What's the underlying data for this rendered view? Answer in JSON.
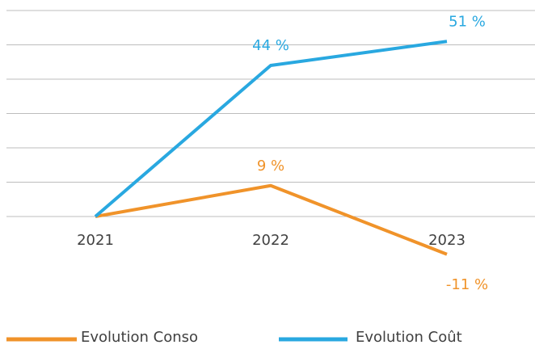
{
  "chart_data": {
    "type": "line",
    "categories": [
      "2021",
      "2022",
      "2023"
    ],
    "series": [
      {
        "name": "Evolution Conso",
        "color": "#f0932a",
        "values": [
          0,
          9,
          -11
        ],
        "value_labels": [
          null,
          "9 %",
          "-11 %"
        ]
      },
      {
        "name": "Evolution Coût",
        "color": "#29a8e0",
        "values": [
          0,
          44,
          51
        ],
        "value_labels": [
          null,
          "44 %",
          "51 %"
        ]
      }
    ],
    "ylim": [
      -20,
      60
    ],
    "yticks": [
      0,
      10,
      20,
      30,
      40,
      50,
      60
    ],
    "grid": true
  }
}
